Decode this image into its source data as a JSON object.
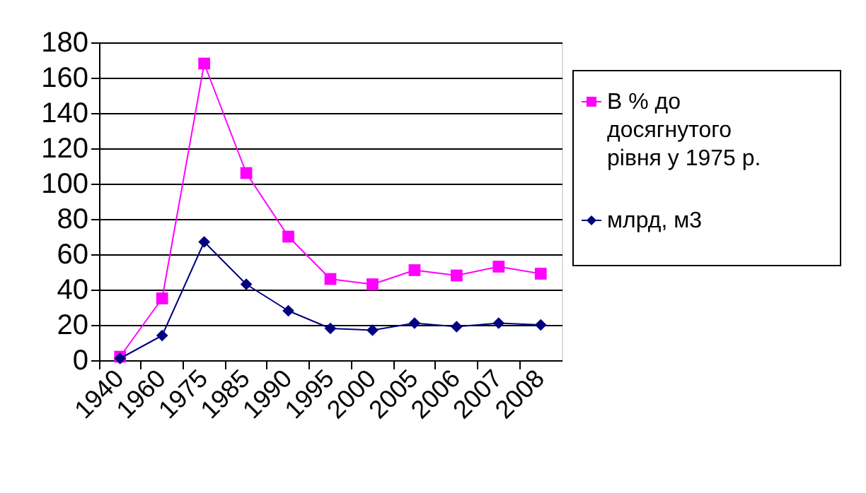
{
  "chart_data": {
    "type": "line",
    "categories": [
      "1940",
      "1960",
      "1975",
      "1985",
      "1990",
      "1995",
      "2000",
      "2005",
      "2006",
      "2007",
      "2008"
    ],
    "series": [
      {
        "name": "В % до досягнутого рівня у 1975 р.",
        "color": "#ff00ff",
        "marker": "square",
        "values": [
          2,
          35,
          168,
          106,
          70,
          46,
          43,
          51,
          48,
          53,
          49
        ]
      },
      {
        "name": "млрд, м3",
        "color": "#000080",
        "marker": "diamond",
        "values": [
          1,
          14,
          67,
          43,
          28,
          18,
          17,
          21,
          19,
          21,
          20
        ]
      }
    ],
    "ylim": [
      0,
      180
    ],
    "yticks": [
      0,
      20,
      40,
      60,
      80,
      100,
      120,
      140,
      160,
      180
    ],
    "grid": "y",
    "legend": "right"
  }
}
